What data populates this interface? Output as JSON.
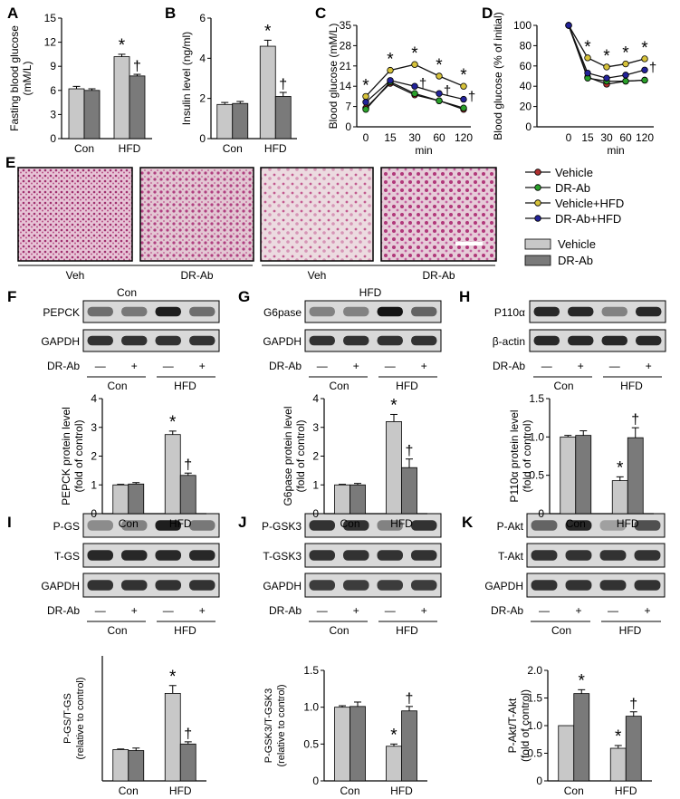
{
  "colors": {
    "vehicle_bar": "#c8c8c8",
    "drab_bar": "#7a7a7a",
    "vehicle_line": "#b03030",
    "drab_line": "#2aa02a",
    "vehicle_hfd_line": "#d6c23a",
    "drab_hfd_line": "#23239a",
    "histo_pink": "#d49bb8"
  },
  "panel_letters": [
    "A",
    "B",
    "C",
    "D",
    "E",
    "F",
    "G",
    "H",
    "I",
    "J",
    "K"
  ],
  "groups": [
    "Con",
    "HFD"
  ],
  "legend": {
    "lines": [
      "Vehicle",
      "DR-Ab",
      "Vehicle+HFD",
      "DR-Ab+HFD"
    ],
    "bars": [
      "Vehicle",
      "DR-Ab"
    ]
  },
  "panelE": {
    "treatment_labels": [
      "Veh",
      "DR-Ab",
      "Veh",
      "DR-Ab"
    ],
    "group_labels": [
      "Con",
      "HFD"
    ]
  },
  "blots": {
    "F": {
      "rows": [
        "PEPCK",
        "GAPDH"
      ],
      "treat_label": "DR-Ab",
      "signs": [
        "—",
        "+",
        "—",
        "+"
      ],
      "band_intensity": [
        [
          0.55,
          0.5,
          0.95,
          0.55
        ],
        [
          0.85,
          0.85,
          0.85,
          0.85
        ]
      ]
    },
    "G": {
      "rows": [
        "G6pase",
        "GAPDH"
      ],
      "treat_label": "DR-Ab",
      "signs": [
        "—",
        "+",
        "—",
        "+"
      ],
      "band_intensity": [
        [
          0.45,
          0.45,
          1.0,
          0.6
        ],
        [
          0.85,
          0.85,
          0.85,
          0.85
        ]
      ]
    },
    "H": {
      "rows": [
        "P110α",
        "β-actin"
      ],
      "treat_label": "DR-Ab",
      "signs": [
        "—",
        "+",
        "—",
        "+"
      ],
      "band_intensity": [
        [
          0.9,
          0.9,
          0.45,
          0.9
        ],
        [
          0.9,
          0.9,
          0.9,
          0.9
        ]
      ]
    },
    "I": {
      "rows": [
        "P-GS",
        "T-GS",
        "GAPDH"
      ],
      "treat_label": "DR-Ab",
      "signs": [
        "—",
        "+",
        "—",
        "+"
      ],
      "band_intensity": [
        [
          0.4,
          0.45,
          0.95,
          0.5
        ],
        [
          0.9,
          0.9,
          0.9,
          0.9
        ],
        [
          0.85,
          0.85,
          0.85,
          0.85
        ]
      ]
    },
    "J": {
      "rows": [
        "P-GSK3",
        "T-GSK3",
        "GAPDH"
      ],
      "treat_label": "DR-Ab",
      "signs": [
        "—",
        "+",
        "—",
        "+"
      ],
      "band_intensity": [
        [
          0.85,
          0.85,
          0.45,
          0.85
        ],
        [
          0.85,
          0.85,
          0.85,
          0.85
        ],
        [
          0.8,
          0.8,
          0.8,
          0.8
        ]
      ]
    },
    "K": {
      "rows": [
        "P-Akt",
        "T-Akt",
        "GAPDH"
      ],
      "treat_label": "DR-Ab",
      "signs": [
        "—",
        "+",
        "—",
        "+"
      ],
      "band_intensity": [
        [
          0.6,
          0.9,
          0.3,
          0.7
        ],
        [
          0.85,
          0.85,
          0.85,
          0.85
        ],
        [
          0.85,
          0.85,
          0.85,
          0.85
        ]
      ]
    }
  },
  "chart_data": [
    {
      "id": "A",
      "type": "bar",
      "categories": [
        "Con",
        "HFD"
      ],
      "ylabel": "Fasting blood glucose (mM/L)",
      "ylim": [
        0,
        15
      ],
      "yticks": [
        0,
        3,
        6,
        9,
        12,
        15
      ],
      "series": [
        {
          "name": "Vehicle",
          "values": [
            6.2,
            10.2
          ],
          "errors": [
            0.3,
            0.3
          ]
        },
        {
          "name": "DR-Ab",
          "values": [
            6.0,
            7.8
          ],
          "errors": [
            0.2,
            0.2
          ]
        }
      ],
      "annotations": [
        {
          "group": 1,
          "series": 0,
          "text": "*"
        },
        {
          "group": 1,
          "series": 1,
          "text": "†"
        }
      ]
    },
    {
      "id": "B",
      "type": "bar",
      "categories": [
        "Con",
        "HFD"
      ],
      "ylabel": "Insulin level (ng/ml)",
      "ylim": [
        0,
        6
      ],
      "yticks": [
        0,
        2,
        4,
        6
      ],
      "series": [
        {
          "name": "Vehicle",
          "values": [
            1.7,
            4.6
          ],
          "errors": [
            0.1,
            0.3
          ]
        },
        {
          "name": "DR-Ab",
          "values": [
            1.75,
            2.1
          ],
          "errors": [
            0.1,
            0.2
          ]
        }
      ],
      "annotations": [
        {
          "group": 1,
          "series": 0,
          "text": "*"
        },
        {
          "group": 1,
          "series": 1,
          "text": "†"
        }
      ]
    },
    {
      "id": "C",
      "type": "line",
      "x": [
        0,
        15,
        30,
        60,
        120
      ],
      "xticks": [
        "0",
        "15",
        "30",
        "60",
        "120"
      ],
      "xlabel": "min",
      "ylabel": "Blood glucose (mM/L)",
      "ylim": [
        0,
        35
      ],
      "yticks": [
        0,
        7,
        14,
        21,
        28,
        35
      ],
      "series": [
        {
          "name": "Vehicle",
          "values": [
            6.5,
            15.0,
            11.0,
            9.0,
            6.0
          ]
        },
        {
          "name": "DR-Ab",
          "values": [
            6.0,
            15.5,
            11.5,
            9.0,
            6.5
          ]
        },
        {
          "name": "Vehicle+HFD",
          "values": [
            10.5,
            19.5,
            21.5,
            17.5,
            14.0
          ]
        },
        {
          "name": "DR-Ab+HFD",
          "values": [
            8.5,
            16.0,
            14.0,
            11.5,
            9.5
          ]
        }
      ],
      "annotations": [
        {
          "x": 0,
          "text": "*"
        },
        {
          "x": 15,
          "text": "*"
        },
        {
          "x": 30,
          "text": "*"
        },
        {
          "x": 30,
          "text": "†"
        },
        {
          "x": 60,
          "text": "*"
        },
        {
          "x": 60,
          "text": "†"
        },
        {
          "x": 120,
          "text": "*"
        },
        {
          "x": 120,
          "text": "†"
        }
      ]
    },
    {
      "id": "D",
      "type": "line",
      "x": [
        0,
        15,
        30,
        60,
        120
      ],
      "xticks": [
        "0",
        "15",
        "30",
        "60",
        "120"
      ],
      "xlabel": "min",
      "ylabel": "Blood glucose (% of initial)",
      "ylim": [
        0,
        100
      ],
      "yticks": [
        0,
        20,
        40,
        60,
        80,
        100
      ],
      "series": [
        {
          "name": "Vehicle",
          "values": [
            100,
            49,
            42,
            45,
            46
          ]
        },
        {
          "name": "DR-Ab",
          "values": [
            100,
            48,
            45,
            45,
            46
          ]
        },
        {
          "name": "Vehicle+HFD",
          "values": [
            100,
            68,
            59,
            62,
            67
          ]
        },
        {
          "name": "DR-Ab+HFD",
          "values": [
            100,
            53,
            48,
            51,
            56
          ]
        }
      ],
      "annotations": [
        {
          "x": 15,
          "text": "*"
        },
        {
          "x": 30,
          "text": "*"
        },
        {
          "x": 60,
          "text": "*"
        },
        {
          "x": 120,
          "text": "*"
        },
        {
          "x": 120,
          "text": "†"
        }
      ]
    },
    {
      "id": "F",
      "type": "bar",
      "categories": [
        "Con",
        "HFD"
      ],
      "ylabel": "PEPCK protein level (fold of control)",
      "ylim": [
        0,
        4
      ],
      "yticks": [
        0,
        1,
        2,
        3,
        4
      ],
      "series": [
        {
          "name": "Vehicle",
          "values": [
            1.0,
            2.75
          ],
          "errors": [
            0.02,
            0.12
          ]
        },
        {
          "name": "DR-Ab",
          "values": [
            1.03,
            1.33
          ],
          "errors": [
            0.05,
            0.08
          ]
        }
      ],
      "annotations": [
        {
          "group": 1,
          "series": 0,
          "text": "*"
        },
        {
          "group": 1,
          "series": 1,
          "text": "†"
        }
      ]
    },
    {
      "id": "G",
      "type": "bar",
      "categories": [
        "Con",
        "HFD"
      ],
      "ylabel": "G6pase protein level (fold of control)",
      "ylim": [
        0,
        4
      ],
      "yticks": [
        0,
        1,
        2,
        3,
        4
      ],
      "series": [
        {
          "name": "Vehicle",
          "values": [
            1.0,
            3.2
          ],
          "errors": [
            0.02,
            0.25
          ]
        },
        {
          "name": "DR-Ab",
          "values": [
            1.0,
            1.6
          ],
          "errors": [
            0.05,
            0.3
          ]
        }
      ],
      "annotations": [
        {
          "group": 1,
          "series": 0,
          "text": "*"
        },
        {
          "group": 1,
          "series": 1,
          "text": "†"
        }
      ]
    },
    {
      "id": "H",
      "type": "bar",
      "categories": [
        "Con",
        "HFD"
      ],
      "ylabel": "P110α protein level (fold of control)",
      "ylim": [
        0,
        1.5
      ],
      "yticks": [
        0,
        0.5,
        1.0,
        1.5
      ],
      "series": [
        {
          "name": "Vehicle",
          "values": [
            1.0,
            0.43
          ],
          "errors": [
            0.02,
            0.05
          ]
        },
        {
          "name": "DR-Ab",
          "values": [
            1.02,
            0.99
          ],
          "errors": [
            0.06,
            0.13
          ]
        }
      ],
      "annotations": [
        {
          "group": 1,
          "series": 0,
          "text": "*"
        },
        {
          "group": 1,
          "series": 1,
          "text": "†"
        }
      ]
    },
    {
      "id": "I",
      "type": "bar",
      "categories": [
        "Con",
        "HFD"
      ],
      "ylabel": "P-GS/T-GS (relative to control)",
      "ylim": [
        0,
        4
      ],
      "yticks": [],
      "series": [
        {
          "name": "Vehicle",
          "values": [
            1.0,
            2.8
          ],
          "errors": [
            0.02,
            0.25
          ]
        },
        {
          "name": "DR-Ab",
          "values": [
            0.97,
            1.18
          ],
          "errors": [
            0.08,
            0.07
          ]
        }
      ],
      "annotations": [
        {
          "group": 1,
          "series": 0,
          "text": "*"
        },
        {
          "group": 1,
          "series": 1,
          "text": "†"
        }
      ]
    },
    {
      "id": "J",
      "type": "bar",
      "categories": [
        "Con",
        "HFD"
      ],
      "ylabel": "P-GSK3/T-GSK3 (relative to control)",
      "ylim": [
        0,
        1.5
      ],
      "yticks": [
        0,
        0.5,
        1.0,
        1.5
      ],
      "series": [
        {
          "name": "Vehicle",
          "values": [
            1.0,
            0.47
          ],
          "errors": [
            0.02,
            0.03
          ]
        },
        {
          "name": "DR-Ab",
          "values": [
            1.01,
            0.95
          ],
          "errors": [
            0.06,
            0.06
          ]
        }
      ],
      "annotations": [
        {
          "group": 1,
          "series": 0,
          "text": "*"
        },
        {
          "group": 1,
          "series": 1,
          "text": "†"
        }
      ]
    },
    {
      "id": "K",
      "type": "bar",
      "categories": [
        "Con",
        "HFD"
      ],
      "ylabel": "P-Akt/T-Akt (fold of control)",
      "ylim": [
        0,
        2.0
      ],
      "yticks": [
        0,
        0.5,
        1.0,
        1.5,
        2.0
      ],
      "series": [
        {
          "name": "Vehicle",
          "values": [
            1.0,
            0.59
          ],
          "errors": [
            0.0,
            0.05
          ]
        },
        {
          "name": "DR-Ab",
          "values": [
            1.58,
            1.17
          ],
          "errors": [
            0.07,
            0.08
          ]
        }
      ],
      "annotations": [
        {
          "group": 0,
          "series": 1,
          "text": "*"
        },
        {
          "group": 1,
          "series": 0,
          "text": "*"
        },
        {
          "group": 1,
          "series": 1,
          "text": "†"
        }
      ]
    }
  ]
}
